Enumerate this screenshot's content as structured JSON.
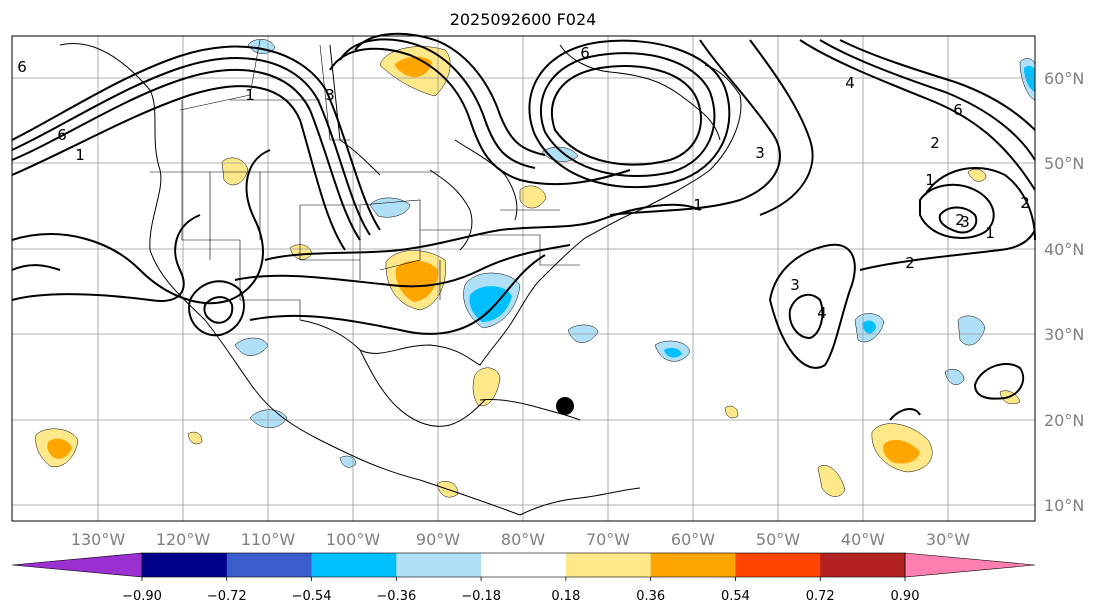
{
  "title": "2025092600 F024",
  "map": {
    "longitude_labels": [
      "130°W",
      "120°W",
      "110°W",
      "100°W",
      "90°W",
      "80°W",
      "70°W",
      "60°W",
      "50°W",
      "40°W",
      "30°W"
    ],
    "latitude_labels": [
      "60°N",
      "50°N",
      "40°N",
      "30°N",
      "20°N",
      "10°N"
    ],
    "contour_labels": [
      "6",
      "6",
      "1",
      "1",
      "3",
      "3",
      "2",
      "2",
      "3",
      "4",
      "6",
      "2",
      "1",
      "1",
      "2",
      "3",
      "1",
      "4",
      "6"
    ],
    "storm_marker": "black-dot"
  },
  "colorbar": {
    "tick_labels": [
      "−0.90",
      "−0.72",
      "−0.54",
      "−0.36",
      "−0.18",
      "0.18",
      "0.36",
      "0.54",
      "0.72",
      "0.90"
    ],
    "colors": [
      "#9b30d0",
      "#00008b",
      "#3a5fcd",
      "#00bfff",
      "#b0e0f8",
      "#ffffff",
      "#ffe88a",
      "#ffa500",
      "#ff4500",
      "#b22222",
      "#ff80b0"
    ]
  }
}
